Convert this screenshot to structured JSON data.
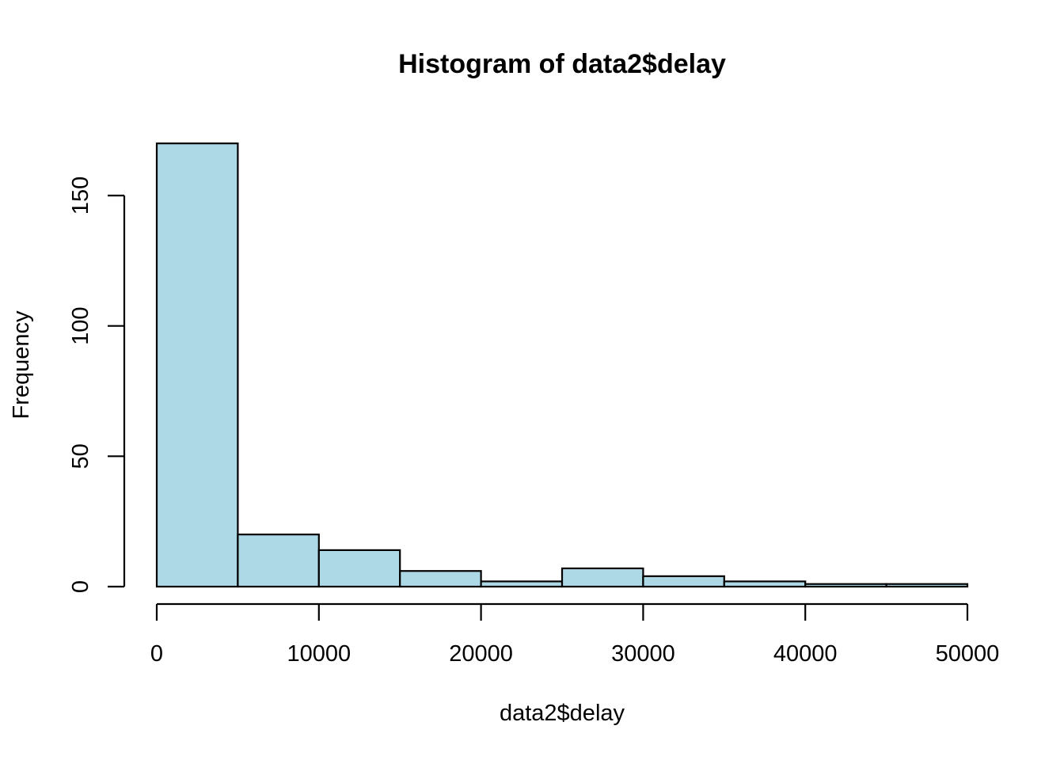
{
  "chart_data": {
    "type": "bar",
    "title": "Histogram of data2$delay",
    "xlabel": "data2$delay",
    "ylabel": "Frequency",
    "bin_edges": [
      0,
      5000,
      10000,
      15000,
      20000,
      25000,
      30000,
      35000,
      40000,
      45000,
      50000
    ],
    "values": [
      170,
      20,
      14,
      6,
      2,
      7,
      4,
      2,
      1,
      1
    ],
    "xlim": [
      0,
      50000
    ],
    "ylim": [
      0,
      170
    ],
    "x_ticks": [
      0,
      10000,
      20000,
      30000,
      40000,
      50000
    ],
    "x_tick_labels": [
      "0",
      "10000",
      "20000",
      "30000",
      "40000",
      "50000"
    ],
    "y_ticks": [
      0,
      50,
      100,
      150
    ],
    "y_tick_labels": [
      "0",
      "50",
      "100",
      "150"
    ],
    "bar_color": "#ADD8E6",
    "grid": false,
    "legend": "none"
  }
}
